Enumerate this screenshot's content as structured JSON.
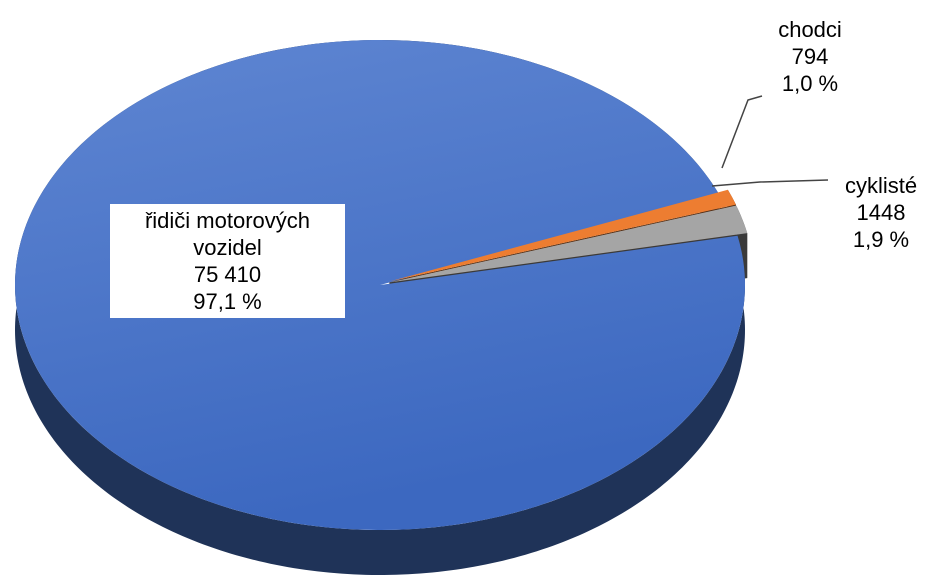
{
  "chart_data": {
    "type": "pie",
    "categories": [
      "řidiči motorových vozidel",
      "chodci",
      "cyklisté"
    ],
    "values": [
      75410,
      794,
      1448
    ],
    "value_labels": [
      "75 410",
      "794",
      "1448"
    ],
    "percent_labels": [
      "97,1 %",
      "1,0 %",
      "1,9 %"
    ],
    "colors": [
      "#4472c4",
      "#ed7d31",
      "#a5a5a5"
    ]
  }
}
